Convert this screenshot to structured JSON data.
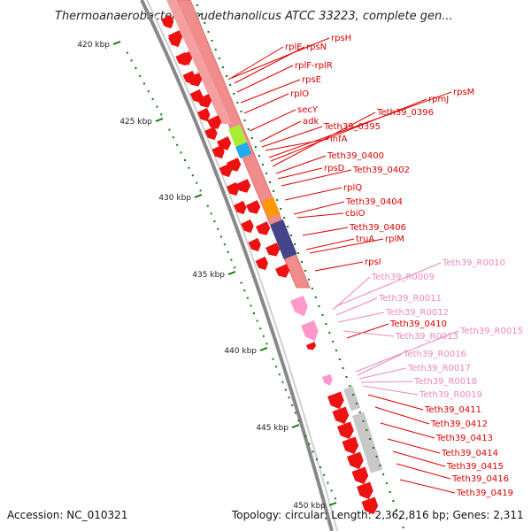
{
  "title": "Thermoanaerobacter pseudethanolicus ATCC 33223, complete gen...",
  "footer": {
    "accession": "Accession: NC_010321",
    "topology": "Topology: circular; Length: 2,362,816 bp; Genes: 2,311"
  },
  "scale_labels": [
    "420 kbp",
    "425 kbp",
    "430 kbp",
    "435 kbp",
    "440 kbp",
    "445 kbp",
    "450 kbp"
  ],
  "colors": {
    "gene_red": "#ee1111",
    "rna_pink": "#ff99cc",
    "label_red": "#dd0000",
    "label_pink": "#ee88bb",
    "band_salmon": "#f08c8c",
    "band_green": "#aaee33",
    "band_cyan": "#22aaee",
    "band_orange": "#ff9900",
    "band_navy": "#444488",
    "band_gray": "#c8c8c8",
    "backbone": "#888888",
    "tick_green": "#117711"
  },
  "gene_labels": [
    {
      "text": "rpsH",
      "kind": "cds"
    },
    {
      "text": "rplE",
      "kind": "cds"
    },
    {
      "text": "rpsN",
      "kind": "cds"
    },
    {
      "text": "rplF-rplR",
      "kind": "cds"
    },
    {
      "text": "rpsE",
      "kind": "cds"
    },
    {
      "text": "rplO",
      "kind": "cds"
    },
    {
      "text": "secY",
      "kind": "cds"
    },
    {
      "text": "adk",
      "kind": "cds"
    },
    {
      "text": "rpsM",
      "kind": "cds"
    },
    {
      "text": "rpmJ",
      "kind": "cds"
    },
    {
      "text": "Teth39_0396",
      "kind": "cds"
    },
    {
      "text": "Teth39_0395",
      "kind": "cds"
    },
    {
      "text": "infA",
      "kind": "cds"
    },
    {
      "text": "Teth39_0400",
      "kind": "cds"
    },
    {
      "text": "rpsD",
      "kind": "cds"
    },
    {
      "text": "Teth39_0402",
      "kind": "cds"
    },
    {
      "text": "rplQ",
      "kind": "cds"
    },
    {
      "text": "Teth39_0404",
      "kind": "cds"
    },
    {
      "text": "cbiO",
      "kind": "cds"
    },
    {
      "text": "Teth39_0406",
      "kind": "cds"
    },
    {
      "text": "truA",
      "kind": "cds"
    },
    {
      "text": "rplM",
      "kind": "cds"
    },
    {
      "text": "rpsI",
      "kind": "cds"
    },
    {
      "text": "Teth39_R0010",
      "kind": "rna"
    },
    {
      "text": "Teth39_R0009",
      "kind": "rna"
    },
    {
      "text": "Teth39_R0011",
      "kind": "rna"
    },
    {
      "text": "Teth39_R0012",
      "kind": "rna"
    },
    {
      "text": "Teth39_0410",
      "kind": "cds"
    },
    {
      "text": "Teth39_R0013",
      "kind": "rna"
    },
    {
      "text": "Teth39_R0015",
      "kind": "rna"
    },
    {
      "text": "Teth39_R0016",
      "kind": "rna"
    },
    {
      "text": "Teth39_R0017",
      "kind": "rna"
    },
    {
      "text": "Teth39_R0018",
      "kind": "rna"
    },
    {
      "text": "Teth39_R0019",
      "kind": "rna"
    },
    {
      "text": "Teth39_0411",
      "kind": "cds"
    },
    {
      "text": "Teth39_0412",
      "kind": "cds"
    },
    {
      "text": "Teth39_0413",
      "kind": "cds"
    },
    {
      "text": "Teth39_0414",
      "kind": "cds"
    },
    {
      "text": "Teth39_0415",
      "kind": "cds"
    },
    {
      "text": "Teth39_0416",
      "kind": "cds"
    },
    {
      "text": "Teth39_0419",
      "kind": "cds"
    }
  ]
}
